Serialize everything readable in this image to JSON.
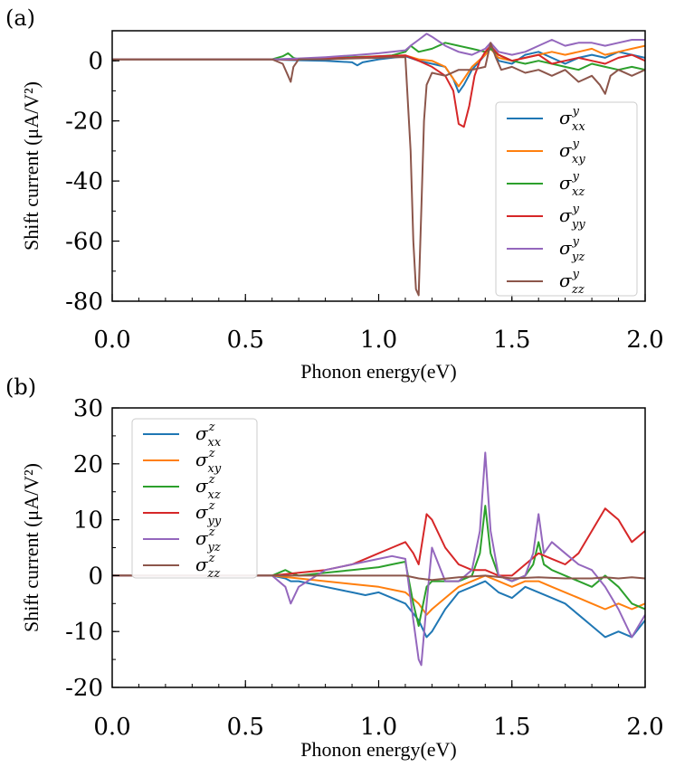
{
  "chart_data": [
    {
      "type": "line",
      "panel_label": "(a)",
      "xlabel": "Phonon energy(eV)",
      "ylabel": "Shift current (μA/V²)",
      "xlim": [
        0.0,
        2.0
      ],
      "ylim": [
        -80,
        10
      ],
      "xticks": [
        "0.0",
        "0.5",
        "1.0",
        "1.5",
        "2.0"
      ],
      "yticks": [
        "0",
        "-20",
        "-40",
        "-60",
        "-80"
      ],
      "legend_position": "center-right",
      "series": [
        {
          "name": "σ^y_xx",
          "sym": "σ",
          "sup": "y",
          "sub": "xx",
          "color": "#1f77b4",
          "x": [
            0.0,
            0.6,
            0.65,
            0.7,
            0.8,
            0.9,
            0.92,
            0.94,
            1.0,
            1.05,
            1.1,
            1.15,
            1.2,
            1.25,
            1.28,
            1.3,
            1.32,
            1.35,
            1.4,
            1.42,
            1.45,
            1.5,
            1.55,
            1.6,
            1.65,
            1.7,
            1.75,
            1.8,
            1.85,
            1.9,
            1.95,
            2.0
          ],
          "y": [
            0.5,
            0.5,
            0.3,
            0.2,
            0.0,
            -0.5,
            -1.5,
            -0.5,
            0.5,
            1.0,
            1.5,
            0,
            -1,
            -2,
            -6,
            -10.5,
            -8,
            -3,
            2,
            5,
            0,
            -1,
            2,
            3,
            1,
            -1,
            1,
            2,
            1,
            3,
            2,
            1
          ]
        },
        {
          "name": "σ^y_xy",
          "sym": "σ",
          "sup": "y",
          "sub": "xy",
          "color": "#ff7f0e",
          "x": [
            0.0,
            0.6,
            0.7,
            0.8,
            0.9,
            1.0,
            1.1,
            1.15,
            1.2,
            1.25,
            1.28,
            1.3,
            1.32,
            1.35,
            1.4,
            1.42,
            1.45,
            1.5,
            1.55,
            1.6,
            1.65,
            1.7,
            1.75,
            1.8,
            1.85,
            1.9,
            1.95,
            2.0
          ],
          "y": [
            0.5,
            0.5,
            0.5,
            0.8,
            1.2,
            1.5,
            1.8,
            0.5,
            0,
            -2,
            -6,
            -8.5,
            -6,
            -2,
            2,
            4,
            1,
            0,
            1,
            2,
            3,
            2,
            3,
            4,
            2,
            3,
            4,
            5
          ]
        },
        {
          "name": "σ^y_xz",
          "sym": "σ",
          "sup": "y",
          "sub": "xz",
          "color": "#2ca02c",
          "x": [
            0.0,
            0.6,
            0.64,
            0.66,
            0.68,
            0.7,
            0.8,
            0.9,
            1.0,
            1.05,
            1.1,
            1.12,
            1.15,
            1.2,
            1.25,
            1.3,
            1.35,
            1.4,
            1.42,
            1.45,
            1.5,
            1.55,
            1.6,
            1.65,
            1.7,
            1.75,
            1.8,
            1.85,
            1.9,
            1.95,
            2.0
          ],
          "y": [
            0.5,
            0.5,
            1.5,
            2.5,
            1.0,
            0.5,
            0.8,
            1.2,
            1.5,
            1.8,
            3,
            5,
            3,
            4,
            6,
            5,
            4,
            3,
            4,
            2,
            0,
            -1,
            0,
            -1,
            -2,
            -3,
            -1,
            -2,
            -3,
            -2,
            -3
          ]
        },
        {
          "name": "σ^y_yy",
          "sym": "σ",
          "sup": "y",
          "sub": "yy",
          "color": "#d62728",
          "x": [
            0.0,
            0.6,
            0.7,
            0.8,
            0.9,
            1.0,
            1.1,
            1.15,
            1.2,
            1.25,
            1.28,
            1.3,
            1.32,
            1.34,
            1.36,
            1.38,
            1.4,
            1.42,
            1.45,
            1.5,
            1.55,
            1.6,
            1.65,
            1.7,
            1.75,
            1.8,
            1.85,
            1.9,
            1.95,
            2.0
          ],
          "y": [
            0.5,
            0.5,
            0.5,
            0.8,
            1.0,
            1.5,
            1.8,
            0,
            -2,
            -5,
            -10,
            -21,
            -22,
            -15,
            -5,
            0,
            3,
            5,
            2,
            0,
            1,
            2,
            -1,
            0,
            1,
            0,
            -1,
            1,
            2,
            0
          ]
        },
        {
          "name": "σ^y_yz",
          "sym": "σ",
          "sup": "y",
          "sub": "yz",
          "color": "#9467bd",
          "x": [
            0.0,
            0.6,
            0.7,
            0.8,
            0.9,
            1.0,
            1.1,
            1.12,
            1.15,
            1.18,
            1.2,
            1.25,
            1.3,
            1.35,
            1.4,
            1.42,
            1.45,
            1.5,
            1.55,
            1.6,
            1.65,
            1.7,
            1.75,
            1.8,
            1.85,
            1.9,
            1.95,
            2.0
          ],
          "y": [
            0.5,
            0.5,
            0.8,
            1.2,
            1.8,
            2.5,
            3.5,
            5,
            7,
            9,
            8,
            5,
            3,
            2,
            4,
            6,
            3,
            2,
            3,
            5,
            7,
            5,
            6,
            6,
            5,
            6,
            7,
            7
          ]
        },
        {
          "name": "σ^y_zz",
          "sym": "σ",
          "sup": "y",
          "sub": "zz",
          "color": "#8c564b",
          "x": [
            0.0,
            0.6,
            0.64,
            0.66,
            0.67,
            0.68,
            0.7,
            0.8,
            0.9,
            1.0,
            1.05,
            1.1,
            1.12,
            1.13,
            1.14,
            1.15,
            1.16,
            1.17,
            1.18,
            1.2,
            1.25,
            1.3,
            1.35,
            1.4,
            1.42,
            1.44,
            1.46,
            1.5,
            1.55,
            1.6,
            1.65,
            1.7,
            1.75,
            1.8,
            1.83,
            1.85,
            1.87,
            1.9,
            1.95,
            2.0
          ],
          "y": [
            0.5,
            0.5,
            -1,
            -5,
            -7,
            -2,
            0.5,
            0.5,
            0.8,
            1.0,
            1.2,
            1.2,
            -30,
            -60,
            -76,
            -78,
            -50,
            -20,
            -8,
            -4,
            -5,
            -3,
            -3,
            -2,
            6,
            1,
            -3,
            -2,
            -4,
            -3,
            -5,
            -3,
            -7,
            -5,
            -8,
            -11,
            -5,
            -3,
            -5,
            -3
          ]
        }
      ]
    },
    {
      "type": "line",
      "panel_label": "(b)",
      "xlabel": "Phonon energy(eV)",
      "ylabel": "Shift current (μA/V²)",
      "xlim": [
        0.0,
        2.0
      ],
      "ylim": [
        -20,
        30
      ],
      "xticks": [
        "0.0",
        "0.5",
        "1.0",
        "1.5",
        "2.0"
      ],
      "yticks": [
        "30",
        "20",
        "10",
        "0",
        "-10",
        "-20"
      ],
      "legend_position": "upper-left",
      "series": [
        {
          "name": "σ^z_xx",
          "sym": "σ",
          "sup": "z",
          "sub": "xx",
          "color": "#1f77b4",
          "x": [
            0.0,
            0.6,
            0.65,
            0.67,
            0.7,
            0.8,
            0.9,
            0.95,
            1.0,
            1.05,
            1.1,
            1.15,
            1.18,
            1.2,
            1.25,
            1.3,
            1.35,
            1.4,
            1.45,
            1.5,
            1.55,
            1.6,
            1.65,
            1.7,
            1.75,
            1.8,
            1.85,
            1.9,
            1.95,
            2.0
          ],
          "y": [
            0,
            0,
            -0.5,
            -1,
            -1,
            -2,
            -3,
            -3.5,
            -3,
            -4,
            -5,
            -8,
            -11,
            -10,
            -6,
            -3,
            -2,
            -1,
            -3,
            -4,
            -2,
            -3,
            -4,
            -5,
            -7,
            -9,
            -11,
            -10,
            -11,
            -8
          ]
        },
        {
          "name": "σ^z_xy",
          "sym": "σ",
          "sup": "z",
          "sub": "xy",
          "color": "#ff7f0e",
          "x": [
            0.0,
            0.6,
            0.7,
            0.8,
            0.9,
            1.0,
            1.05,
            1.1,
            1.15,
            1.18,
            1.2,
            1.25,
            1.3,
            1.35,
            1.4,
            1.45,
            1.5,
            1.55,
            1.6,
            1.65,
            1.7,
            1.75,
            1.8,
            1.85,
            1.9,
            1.95,
            2.0
          ],
          "y": [
            0,
            0,
            -0.5,
            -1,
            -1.5,
            -2,
            -2.5,
            -3,
            -5,
            -7,
            -6,
            -4,
            -2,
            -1,
            0,
            -1,
            -2,
            -1,
            -1,
            -2,
            -3,
            -4,
            -5,
            -6,
            -5,
            -6,
            -5
          ]
        },
        {
          "name": "σ^z_xz",
          "sym": "σ",
          "sup": "z",
          "sub": "xz",
          "color": "#2ca02c",
          "x": [
            0.0,
            0.6,
            0.65,
            0.67,
            0.7,
            0.8,
            0.9,
            1.0,
            1.05,
            1.1,
            1.13,
            1.15,
            1.18,
            1.2,
            1.25,
            1.3,
            1.35,
            1.38,
            1.4,
            1.42,
            1.45,
            1.5,
            1.55,
            1.58,
            1.6,
            1.62,
            1.65,
            1.7,
            1.75,
            1.8,
            1.85,
            1.9,
            1.95,
            2.0
          ],
          "y": [
            0,
            0,
            1,
            0.5,
            0,
            0.5,
            1,
            1.5,
            2,
            2.5,
            -5,
            -9,
            -2,
            -1,
            -1,
            -1,
            0,
            4,
            12.5,
            4,
            0,
            -1,
            0,
            2,
            6,
            2,
            1,
            0,
            -1,
            -2,
            0,
            -2,
            -5,
            -6
          ]
        },
        {
          "name": "σ^z_yy",
          "sym": "σ",
          "sup": "z",
          "sub": "yy",
          "color": "#d62728",
          "x": [
            0.0,
            0.6,
            0.7,
            0.8,
            0.9,
            0.95,
            1.0,
            1.05,
            1.1,
            1.13,
            1.15,
            1.18,
            1.2,
            1.25,
            1.3,
            1.35,
            1.4,
            1.45,
            1.5,
            1.55,
            1.6,
            1.65,
            1.7,
            1.75,
            1.8,
            1.85,
            1.9,
            1.95,
            2.0
          ],
          "y": [
            0,
            0,
            0.5,
            1,
            2,
            3,
            4,
            5,
            6,
            4,
            2,
            11,
            10,
            5,
            2,
            1,
            1,
            0,
            0,
            2,
            4,
            3,
            2,
            4,
            8,
            12,
            10,
            6,
            8
          ]
        },
        {
          "name": "σ^z_yz",
          "sym": "σ",
          "sup": "z",
          "sub": "yz",
          "color": "#9467bd",
          "x": [
            0.0,
            0.6,
            0.65,
            0.67,
            0.7,
            0.8,
            0.9,
            1.0,
            1.05,
            1.1,
            1.13,
            1.15,
            1.16,
            1.18,
            1.2,
            1.25,
            1.3,
            1.35,
            1.38,
            1.4,
            1.42,
            1.45,
            1.5,
            1.55,
            1.58,
            1.6,
            1.62,
            1.65,
            1.7,
            1.75,
            1.8,
            1.85,
            1.9,
            1.95,
            2.0
          ],
          "y": [
            0,
            0,
            -2,
            -5,
            -2,
            1,
            2,
            3,
            3.5,
            3,
            -8,
            -15,
            -16,
            -5,
            5,
            -1,
            -1,
            1,
            8,
            22,
            8,
            0,
            -1,
            0,
            4,
            11,
            4,
            6,
            4,
            2,
            1,
            -2,
            -6,
            -11,
            -7
          ]
        },
        {
          "name": "σ^z_zz",
          "sym": "σ",
          "sup": "z",
          "sub": "zz",
          "color": "#8c564b",
          "x": [
            0.0,
            0.6,
            0.7,
            0.8,
            0.9,
            1.0,
            1.1,
            1.15,
            1.2,
            1.3,
            1.4,
            1.5,
            1.6,
            1.7,
            1.8,
            1.85,
            1.9,
            1.95,
            2.0
          ],
          "y": [
            0,
            0,
            0,
            0,
            0,
            0,
            0,
            -0.5,
            -0.8,
            -0.3,
            0,
            -0.5,
            -0.3,
            -0.5,
            -0.5,
            -0.3,
            -0.5,
            -0.3,
            -0.5
          ]
        }
      ]
    }
  ]
}
